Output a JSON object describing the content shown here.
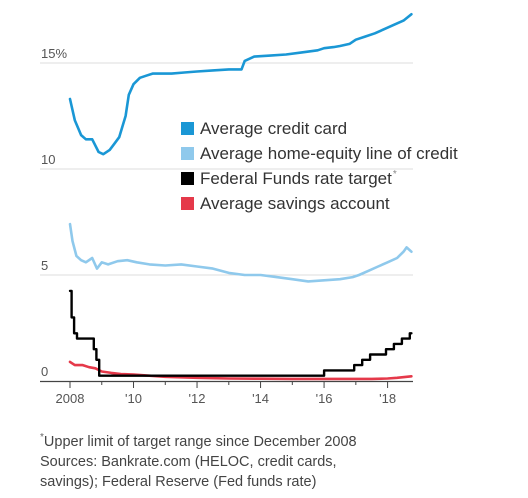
{
  "chart_data": {
    "type": "line",
    "title": "",
    "xlabel": "",
    "ylabel": "",
    "xlim": [
      2008,
      2018.8
    ],
    "ylim": [
      0,
      17.5
    ],
    "x_ticks": [
      2008,
      2010,
      2012,
      2014,
      2016,
      2018
    ],
    "x_tick_labels": [
      "2008",
      "'10",
      "'12",
      "'14",
      "'16",
      "'18"
    ],
    "y_ticks": [
      0,
      5,
      10,
      15
    ],
    "y_tick_labels": [
      "0",
      "5",
      "10",
      "15%"
    ],
    "grid": "horizontal",
    "legend_position": "center",
    "series": [
      {
        "name": "Average credit card",
        "color": "#1a97d5",
        "step": false,
        "x": [
          2008.0,
          2008.15,
          2008.35,
          2008.5,
          2008.7,
          2008.9,
          2009.05,
          2009.25,
          2009.4,
          2009.55,
          2009.75,
          2009.85,
          2010.0,
          2010.2,
          2010.4,
          2010.6,
          2010.9,
          2011.2,
          2011.6,
          2012.0,
          2012.5,
          2013.0,
          2013.4,
          2013.5,
          2013.8,
          2014.3,
          2014.8,
          2015.3,
          2015.8,
          2016.0,
          2016.3,
          2016.5,
          2016.8,
          2017.0,
          2017.3,
          2017.6,
          2017.9,
          2018.2,
          2018.5,
          2018.75
        ],
        "y": [
          13.3,
          12.3,
          11.6,
          11.4,
          11.4,
          10.8,
          10.7,
          10.9,
          11.2,
          11.5,
          12.5,
          13.5,
          14.0,
          14.3,
          14.4,
          14.5,
          14.5,
          14.5,
          14.55,
          14.6,
          14.65,
          14.7,
          14.7,
          15.1,
          15.3,
          15.35,
          15.4,
          15.5,
          15.6,
          15.7,
          15.75,
          15.8,
          15.9,
          16.1,
          16.25,
          16.4,
          16.6,
          16.8,
          17.0,
          17.3
        ]
      },
      {
        "name": "Average home-equity line of credit",
        "color": "#8fc9ec",
        "step": false,
        "x": [
          2008.0,
          2008.08,
          2008.2,
          2008.35,
          2008.5,
          2008.7,
          2008.85,
          2009.0,
          2009.2,
          2009.5,
          2009.8,
          2010.1,
          2010.5,
          2011.0,
          2011.5,
          2012.0,
          2012.5,
          2013.0,
          2013.5,
          2014.0,
          2014.5,
          2015.0,
          2015.5,
          2016.0,
          2016.5,
          2016.9,
          2017.1,
          2017.4,
          2017.7,
          2018.0,
          2018.3,
          2018.5,
          2018.6,
          2018.75
        ],
        "y": [
          7.4,
          6.6,
          5.9,
          5.7,
          5.6,
          5.8,
          5.3,
          5.6,
          5.5,
          5.65,
          5.7,
          5.6,
          5.5,
          5.45,
          5.5,
          5.4,
          5.3,
          5.1,
          5.0,
          5.0,
          4.9,
          4.8,
          4.7,
          4.75,
          4.8,
          4.9,
          5.0,
          5.2,
          5.4,
          5.6,
          5.8,
          6.1,
          6.3,
          6.1
        ]
      },
      {
        "name": "Federal Funds rate target",
        "color": "#000000",
        "step": true,
        "x": [
          2008.0,
          2008.05,
          2008.13,
          2008.22,
          2008.3,
          2008.75,
          2008.83,
          2008.92,
          2016.0,
          2016.95,
          2017.2,
          2017.45,
          2017.95,
          2018.2,
          2018.45,
          2018.7,
          2018.75
        ],
        "y": [
          4.25,
          3.0,
          2.25,
          2.0,
          2.0,
          1.5,
          1.0,
          0.25,
          0.5,
          0.75,
          1.0,
          1.25,
          1.5,
          1.75,
          2.0,
          2.25,
          2.25
        ]
      },
      {
        "name": "Average savings account",
        "color": "#e5394a",
        "step": false,
        "x": [
          2008.0,
          2008.15,
          2008.4,
          2008.6,
          2008.8,
          2009.0,
          2009.3,
          2009.6,
          2010.0,
          2010.5,
          2011.0,
          2012.0,
          2013.0,
          2014.0,
          2015.0,
          2016.0,
          2017.0,
          2017.5,
          2018.0,
          2018.3,
          2018.75
        ],
        "y": [
          0.9,
          0.75,
          0.75,
          0.65,
          0.6,
          0.45,
          0.38,
          0.33,
          0.3,
          0.25,
          0.2,
          0.15,
          0.12,
          0.11,
          0.1,
          0.1,
          0.1,
          0.1,
          0.12,
          0.15,
          0.22
        ]
      }
    ],
    "footnote": "Upper limit of target range since December 2008",
    "footnote_marker": "*",
    "sources": [
      "Sources: Bankrate.com (HELOC, credit cards,",
      "savings); Federal Reserve (Fed funds rate)"
    ]
  }
}
